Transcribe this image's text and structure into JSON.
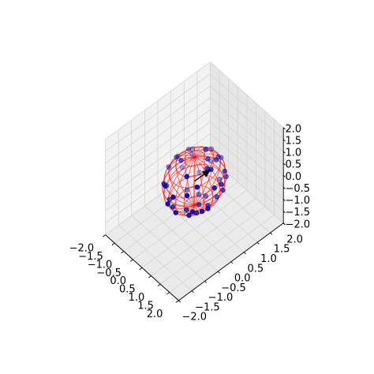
{
  "chart_data": {
    "type": "scatter",
    "projection": "3d",
    "title": "",
    "xlabel": "",
    "ylabel": "",
    "zlabel": "",
    "xlim": [
      -2.0,
      2.0
    ],
    "ylim": [
      -2.0,
      2.0
    ],
    "zlim": [
      -2.0,
      2.0
    ],
    "grid": true,
    "x_tick_labels": [
      "−2.0",
      "−1.5",
      "−1.0",
      "−0.5",
      "0.0",
      "0.5",
      "1.0",
      "1.5",
      "2.0"
    ],
    "y_tick_labels": [
      "−2.0",
      "−1.5",
      "−1.0",
      "−0.5",
      "0.0",
      "0.5",
      "1.0",
      "1.5",
      "2.0"
    ],
    "z_tick_labels": [
      "−2.0",
      "−1.5",
      "−1.0",
      "−0.5",
      "0.0",
      "0.5",
      "1.0",
      "1.5",
      "2.0"
    ],
    "sphere": {
      "type": "wireframe",
      "radius": 1.0,
      "color": "#ff0000"
    },
    "arrow": {
      "from": [
        0,
        0,
        0
      ],
      "to": [
        0.62,
        0.2,
        0.76
      ],
      "color": "#000000"
    },
    "points": [
      {
        "x": 0.62,
        "y": 0.2,
        "z": 0.76
      },
      {
        "x": -0.5,
        "y": 0.8,
        "z": 0.35
      },
      {
        "x": 0.28,
        "y": 0.71,
        "z": 0.64
      },
      {
        "x": -0.9,
        "y": 0.0,
        "z": 0.43
      },
      {
        "x": 0.3,
        "y": -0.5,
        "z": 0.81
      },
      {
        "x": 0.72,
        "y": -0.4,
        "z": 0.57
      },
      {
        "x": -0.3,
        "y": -0.9,
        "z": 0.32
      },
      {
        "x": -0.6,
        "y": 0.2,
        "z": 0.77
      },
      {
        "x": 0.1,
        "y": 0.95,
        "z": 0.29
      },
      {
        "x": 0.55,
        "y": 0.83,
        "z": -0.1
      },
      {
        "x": 0.95,
        "y": 0.1,
        "z": 0.29
      },
      {
        "x": -0.8,
        "y": -0.5,
        "z": -0.33
      },
      {
        "x": 0.4,
        "y": -0.2,
        "z": -0.89
      },
      {
        "x": -0.2,
        "y": 0.3,
        "z": -0.93
      },
      {
        "x": 0.7,
        "y": 0.6,
        "z": -0.38
      },
      {
        "x": -0.5,
        "y": -0.6,
        "z": -0.62
      },
      {
        "x": 0.2,
        "y": -0.85,
        "z": -0.49
      },
      {
        "x": -0.95,
        "y": 0.2,
        "z": -0.24
      },
      {
        "x": 0.85,
        "y": -0.3,
        "z": -0.43
      },
      {
        "x": -0.1,
        "y": 0.5,
        "z": 0.86
      },
      {
        "x": 0.0,
        "y": -0.3,
        "z": -0.95
      },
      {
        "x": 0.3,
        "y": 0.3,
        "z": 0.9
      },
      {
        "x": -0.4,
        "y": 0.9,
        "z": -0.17
      },
      {
        "x": 0.6,
        "y": -0.7,
        "z": 0.38
      },
      {
        "x": -0.7,
        "y": -0.2,
        "z": 0.69
      },
      {
        "x": 0.1,
        "y": 0.1,
        "z": -0.99
      },
      {
        "x": 0.9,
        "y": 0.4,
        "z": 0.17
      },
      {
        "x": -0.3,
        "y": -0.3,
        "z": 0.91
      },
      {
        "x": 0.5,
        "y": 0.5,
        "z": -0.71
      },
      {
        "x": -0.6,
        "y": 0.6,
        "z": -0.53
      },
      {
        "x": 0.2,
        "y": -0.95,
        "z": 0.24
      },
      {
        "x": -0.9,
        "y": -0.35,
        "z": 0.26
      },
      {
        "x": 0.45,
        "y": 0.2,
        "z": -0.87
      },
      {
        "x": -0.15,
        "y": 0.75,
        "z": 0.64
      },
      {
        "x": 0.75,
        "y": -0.6,
        "z": -0.28
      },
      {
        "x": -0.45,
        "y": -0.85,
        "z": 0.27
      },
      {
        "x": 0.05,
        "y": 0.4,
        "z": -0.91
      },
      {
        "x": 0.35,
        "y": -0.45,
        "z": -0.82
      },
      {
        "x": -0.75,
        "y": 0.45,
        "z": 0.48
      },
      {
        "x": 0.65,
        "y": 0.7,
        "z": 0.3
      },
      {
        "x": -0.25,
        "y": -0.65,
        "z": -0.72
      },
      {
        "x": 0.15,
        "y": 0.85,
        "z": -0.5
      },
      {
        "x": -0.55,
        "y": 0.1,
        "z": -0.83
      },
      {
        "x": 0.88,
        "y": -0.1,
        "z": -0.46
      },
      {
        "x": -0.05,
        "y": -0.98,
        "z": -0.19
      },
      {
        "x": 0.4,
        "y": 0.55,
        "z": 0.73
      },
      {
        "x": -0.85,
        "y": 0.5,
        "z": 0.15
      },
      {
        "x": 0.55,
        "y": 0.1,
        "z": 0.83
      }
    ]
  }
}
